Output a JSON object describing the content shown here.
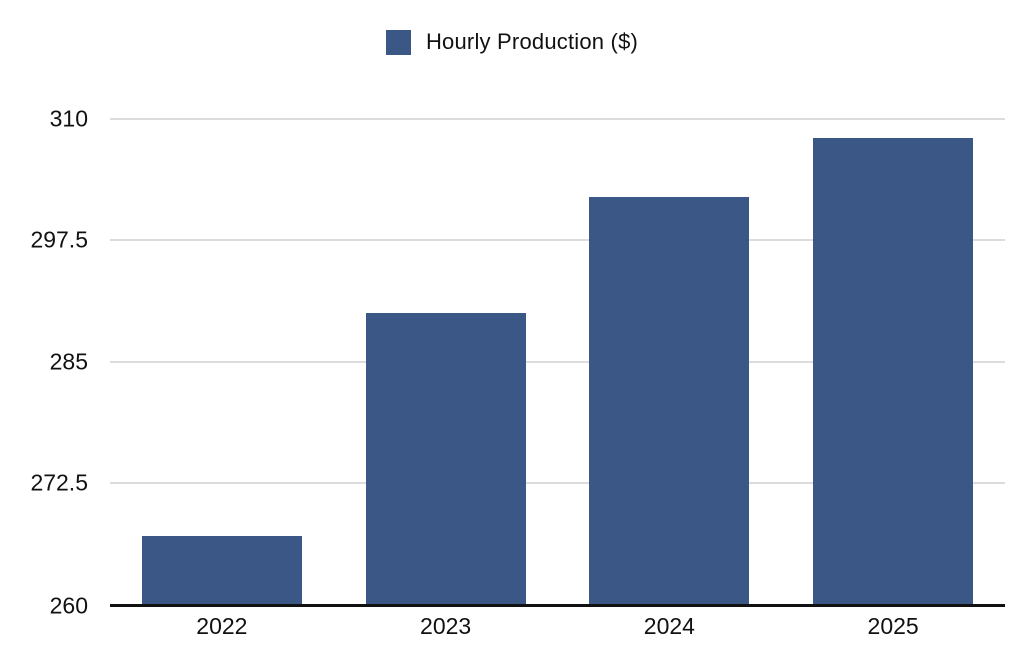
{
  "legend": {
    "label": "Hourly Production ($)"
  },
  "colors": {
    "bar": "#3B5786",
    "gridline": "#DCDCDC",
    "axis_line": "#111111",
    "text": "#111111",
    "background": "#FFFFFF"
  },
  "chart_data": {
    "type": "bar",
    "title": "",
    "legend": [
      "Hourly Production ($)"
    ],
    "legend_position": "top-center",
    "categories": [
      "2022",
      "2023",
      "2024",
      "2025"
    ],
    "series": [
      {
        "name": "Hourly Production ($)",
        "values": [
          267,
          290,
          302,
          308
        ]
      }
    ],
    "xlabel": "",
    "ylabel": "",
    "ylim": [
      260,
      310
    ],
    "yticks": [
      260,
      272.5,
      285,
      297.5,
      310
    ],
    "grid": true,
    "bar_color": "#3B5786"
  }
}
